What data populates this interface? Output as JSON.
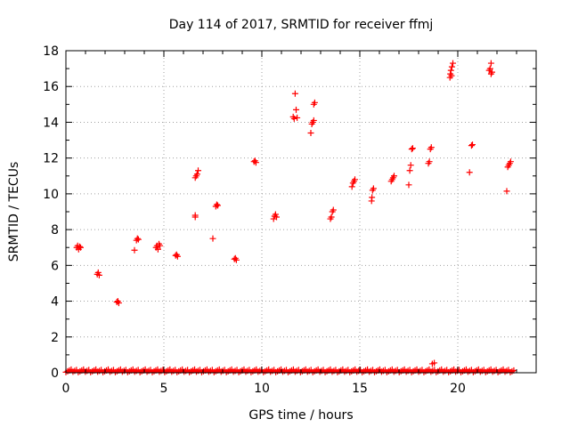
{
  "chart_data": {
    "type": "scatter",
    "title": "Day 114 of 2017, SRMTID for receiver ffmj",
    "xlabel": "GPS time / hours",
    "ylabel": "SRMTID / TECUs",
    "xlim": [
      0,
      24
    ],
    "ylim": [
      0,
      18
    ],
    "x_ticks": [
      0,
      5,
      10,
      15,
      20
    ],
    "y_ticks": [
      0,
      2,
      4,
      6,
      8,
      10,
      12,
      14,
      16,
      18
    ],
    "grid": true,
    "marker": "+",
    "color": "#ff0000",
    "baseline": {
      "y": 0.03,
      "x_start": 0.0,
      "x_end": 22.9,
      "note": "dense near-zero points across full time range"
    },
    "series": [
      {
        "name": "SRMTID",
        "points": [
          [
            0.55,
            7.0
          ],
          [
            0.6,
            7.1
          ],
          [
            0.65,
            6.9
          ],
          [
            0.7,
            7.05
          ],
          [
            0.75,
            7.0
          ],
          [
            1.6,
            5.5
          ],
          [
            1.65,
            5.6
          ],
          [
            1.7,
            5.45
          ],
          [
            2.6,
            3.95
          ],
          [
            2.65,
            4.0
          ],
          [
            2.7,
            3.9
          ],
          [
            3.5,
            6.85
          ],
          [
            3.6,
            7.4
          ],
          [
            3.65,
            7.5
          ],
          [
            3.7,
            7.45
          ],
          [
            4.6,
            7.0
          ],
          [
            4.65,
            7.1
          ],
          [
            4.7,
            6.9
          ],
          [
            4.75,
            7.2
          ],
          [
            4.8,
            7.1
          ],
          [
            5.6,
            6.55
          ],
          [
            5.65,
            6.6
          ],
          [
            5.7,
            6.5
          ],
          [
            6.6,
            8.8
          ],
          [
            6.6,
            8.7
          ],
          [
            6.65,
            11.0
          ],
          [
            6.7,
            11.1
          ],
          [
            6.75,
            11.3
          ],
          [
            6.6,
            10.9
          ],
          [
            7.5,
            7.5
          ],
          [
            7.65,
            9.3
          ],
          [
            7.7,
            9.4
          ],
          [
            7.75,
            9.35
          ],
          [
            8.6,
            6.35
          ],
          [
            8.65,
            6.4
          ],
          [
            8.7,
            6.3
          ],
          [
            9.6,
            11.8
          ],
          [
            9.65,
            11.85
          ],
          [
            9.7,
            11.75
          ],
          [
            10.6,
            8.6
          ],
          [
            10.65,
            8.75
          ],
          [
            10.7,
            8.85
          ],
          [
            10.75,
            8.7
          ],
          [
            11.6,
            14.3
          ],
          [
            11.65,
            14.2
          ],
          [
            11.7,
            15.6
          ],
          [
            11.75,
            14.7
          ],
          [
            11.8,
            14.25
          ],
          [
            12.5,
            13.4
          ],
          [
            12.55,
            13.9
          ],
          [
            12.6,
            14.0
          ],
          [
            12.65,
            14.1
          ],
          [
            12.7,
            15.1
          ],
          [
            12.65,
            15.0
          ],
          [
            13.5,
            8.6
          ],
          [
            13.55,
            8.7
          ],
          [
            13.6,
            9.0
          ],
          [
            13.65,
            9.1
          ],
          [
            14.6,
            10.4
          ],
          [
            14.65,
            10.6
          ],
          [
            14.7,
            10.7
          ],
          [
            14.75,
            10.8
          ],
          [
            15.6,
            9.6
          ],
          [
            15.62,
            9.8
          ],
          [
            15.65,
            10.2
          ],
          [
            15.7,
            10.3
          ],
          [
            16.6,
            10.7
          ],
          [
            16.65,
            10.8
          ],
          [
            16.7,
            10.9
          ],
          [
            16.75,
            11.0
          ],
          [
            17.5,
            10.5
          ],
          [
            17.55,
            11.3
          ],
          [
            17.6,
            11.6
          ],
          [
            17.65,
            12.5
          ],
          [
            17.7,
            12.55
          ],
          [
            18.5,
            11.7
          ],
          [
            18.55,
            11.8
          ],
          [
            18.6,
            12.5
          ],
          [
            18.65,
            12.6
          ],
          [
            18.7,
            0.5
          ],
          [
            18.8,
            0.55
          ],
          [
            19.6,
            16.5
          ],
          [
            19.62,
            16.7
          ],
          [
            19.65,
            16.9
          ],
          [
            19.7,
            17.1
          ],
          [
            19.75,
            17.3
          ],
          [
            19.68,
            16.6
          ],
          [
            20.6,
            11.2
          ],
          [
            20.7,
            12.7
          ],
          [
            20.75,
            12.75
          ],
          [
            21.6,
            16.9
          ],
          [
            21.65,
            17.0
          ],
          [
            21.7,
            17.3
          ],
          [
            21.75,
            16.8
          ],
          [
            21.7,
            16.7
          ],
          [
            22.5,
            10.15
          ],
          [
            22.55,
            11.5
          ],
          [
            22.6,
            11.6
          ],
          [
            22.65,
            11.7
          ],
          [
            22.7,
            11.8
          ]
        ]
      }
    ]
  }
}
